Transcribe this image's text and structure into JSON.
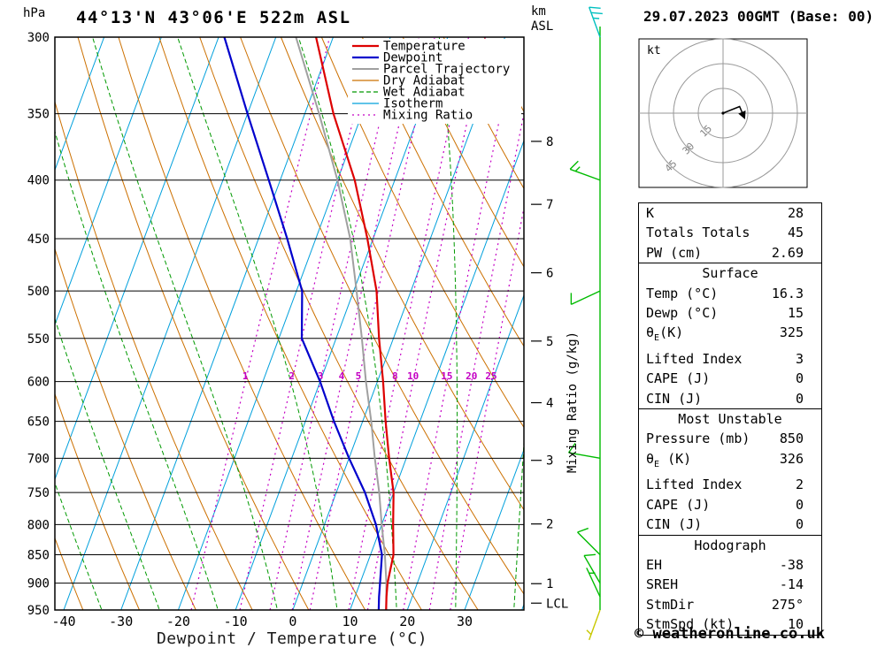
{
  "header": {
    "pressure_unit": "hPa",
    "title": "44°13'N 43°06'E 522m ASL",
    "datetime": "29.07.2023 00GMT (Base: 00)",
    "altitude_unit_line1": "km",
    "altitude_unit_line2": "ASL"
  },
  "axes": {
    "xlabel": "Dewpoint / Temperature (°C)",
    "right_label": "Mixing Ratio (g/kg)",
    "pressure_ticks": [
      300,
      350,
      400,
      450,
      500,
      550,
      600,
      650,
      700,
      750,
      800,
      850,
      900,
      950
    ],
    "temp_ticks": [
      -40,
      -30,
      -20,
      -10,
      0,
      10,
      20,
      30
    ],
    "km_ticks": [
      {
        "label": "8",
        "p": 370
      },
      {
        "label": "7",
        "p": 420
      },
      {
        "label": "6",
        "p": 482
      },
      {
        "label": "5",
        "p": 553
      },
      {
        "label": "4",
        "p": 626
      },
      {
        "label": "3",
        "p": 703
      },
      {
        "label": "2",
        "p": 799
      },
      {
        "label": "1",
        "p": 901
      },
      {
        "label": "LCL",
        "p": 937
      }
    ]
  },
  "legend": [
    {
      "key": "temperature",
      "label": "Temperature",
      "color": "#dd0000",
      "width": 2.2,
      "dash": ""
    },
    {
      "key": "dewpoint",
      "label": "Dewpoint",
      "color": "#0000cc",
      "width": 2.2,
      "dash": ""
    },
    {
      "key": "parcel",
      "label": "Parcel Trajectory",
      "color": "#a0a0a0",
      "width": 2,
      "dash": ""
    },
    {
      "key": "dry_adiabat",
      "label": "Dry Adiabat",
      "color": "#cc7000",
      "width": 1.2,
      "dash": ""
    },
    {
      "key": "wet_adiabat",
      "label": "Wet Adiabat",
      "color": "#009900",
      "width": 1.2,
      "dash": "5 3"
    },
    {
      "key": "isotherm",
      "label": "Isotherm",
      "color": "#00a0dc",
      "width": 1.2,
      "dash": ""
    },
    {
      "key": "mixing_ratio",
      "label": "Mixing Ratio",
      "color": "#c400c4",
      "width": 1.2,
      "dash": "2 4"
    }
  ],
  "chart_data": {
    "type": "skewt_log_p_sounding",
    "title": "44°13'N 43°06'E 522m ASL",
    "datetime": "29.07.2023 00GMT (Base: 00)",
    "pressure_axis_hpa": [
      300,
      950
    ],
    "temperature_axis_c": [
      -40,
      38
    ],
    "isotherm_step_c": 10,
    "dry_adiabat_step_k": 10,
    "wet_adiabat_step_c": 10,
    "temperature_profile_c": [
      [
        950,
        16.3
      ],
      [
        925,
        15.5
      ],
      [
        900,
        14.8
      ],
      [
        850,
        14
      ],
      [
        800,
        12
      ],
      [
        750,
        10
      ],
      [
        700,
        7
      ],
      [
        650,
        4
      ],
      [
        600,
        1
      ],
      [
        550,
        -2.5
      ],
      [
        500,
        -6
      ],
      [
        450,
        -11
      ],
      [
        400,
        -17
      ],
      [
        350,
        -25
      ],
      [
        300,
        -33
      ]
    ],
    "dewpoint_profile_c": [
      [
        950,
        15
      ],
      [
        925,
        14.2
      ],
      [
        900,
        13.5
      ],
      [
        850,
        12
      ],
      [
        800,
        9
      ],
      [
        750,
        5
      ],
      [
        700,
        0
      ],
      [
        650,
        -5
      ],
      [
        600,
        -10
      ],
      [
        550,
        -16
      ],
      [
        500,
        -19
      ],
      [
        450,
        -25
      ],
      [
        400,
        -32
      ],
      [
        350,
        -40
      ],
      [
        300,
        -49
      ]
    ],
    "parcel_profile_c": [
      [
        950,
        16.3
      ],
      [
        900,
        14.6
      ],
      [
        850,
        12.5
      ],
      [
        800,
        10
      ],
      [
        750,
        7.5
      ],
      [
        700,
        4.5
      ],
      [
        650,
        1.5
      ],
      [
        600,
        -2
      ],
      [
        550,
        -5.5
      ],
      [
        500,
        -9.5
      ],
      [
        450,
        -14
      ],
      [
        400,
        -20
      ],
      [
        350,
        -27.5
      ],
      [
        300,
        -36.5
      ]
    ],
    "mixing_ratio_lines_gkg": [
      1,
      2,
      3,
      4,
      5,
      8,
      10,
      15,
      20,
      25
    ],
    "wind_staff_color": "#00bb00",
    "wind_barbs": [
      {
        "p": 300,
        "dir": 340,
        "kt": 25,
        "color": "#00c0c0"
      },
      {
        "p": 400,
        "dir": 290,
        "kt": 15,
        "color": "#00bb00"
      },
      {
        "p": 500,
        "dir": 245,
        "kt": 10,
        "color": "#00bb00"
      },
      {
        "p": 700,
        "dir": 280,
        "kt": 10,
        "color": "#00bb00"
      },
      {
        "p": 850,
        "dir": 315,
        "kt": 10,
        "color": "#00bb00"
      },
      {
        "p": 900,
        "dir": 330,
        "kt": 10,
        "color": "#00bb00"
      },
      {
        "p": 925,
        "dir": 335,
        "kt": 5,
        "color": "#00bb00"
      },
      {
        "p": 950,
        "dir": 200,
        "kt": 5,
        "color": "#c8c800"
      }
    ]
  },
  "hodograph": {
    "unit_label": "kt",
    "rings_kt": [
      15,
      30,
      45
    ],
    "ring_labels": [
      "15",
      "30",
      "45"
    ],
    "trace_uv_kt": [
      [
        0,
        0
      ],
      [
        10,
        4
      ],
      [
        13,
        -3
      ]
    ]
  },
  "panel": {
    "sections": [
      {
        "header": null,
        "rows": [
          [
            "K",
            "28"
          ],
          [
            "Totals Totals",
            "45"
          ],
          [
            "PW (cm)",
            "2.69"
          ]
        ]
      },
      {
        "header": "Surface",
        "rows": [
          [
            "Temp (°C)",
            "16.3"
          ],
          [
            "Dewp (°C)",
            "15"
          ],
          [
            "θE(K)",
            "325"
          ],
          [
            "Lifted Index",
            "3"
          ],
          [
            "CAPE (J)",
            "0"
          ],
          [
            "CIN (J)",
            "0"
          ]
        ]
      },
      {
        "header": "Most Unstable",
        "rows": [
          [
            "Pressure (mb)",
            "850"
          ],
          [
            "θE (K)",
            "326"
          ],
          [
            "Lifted Index",
            "2"
          ],
          [
            "CAPE (J)",
            "0"
          ],
          [
            "CIN (J)",
            "0"
          ]
        ]
      },
      {
        "header": "Hodograph",
        "rows": [
          [
            "EH",
            "-38"
          ],
          [
            "SREH",
            "-14"
          ],
          [
            "StmDir",
            "275°"
          ],
          [
            "StmSpd (kt)",
            "10"
          ]
        ]
      }
    ]
  },
  "footer": {
    "copyright": "© weatheronline.co.uk"
  }
}
